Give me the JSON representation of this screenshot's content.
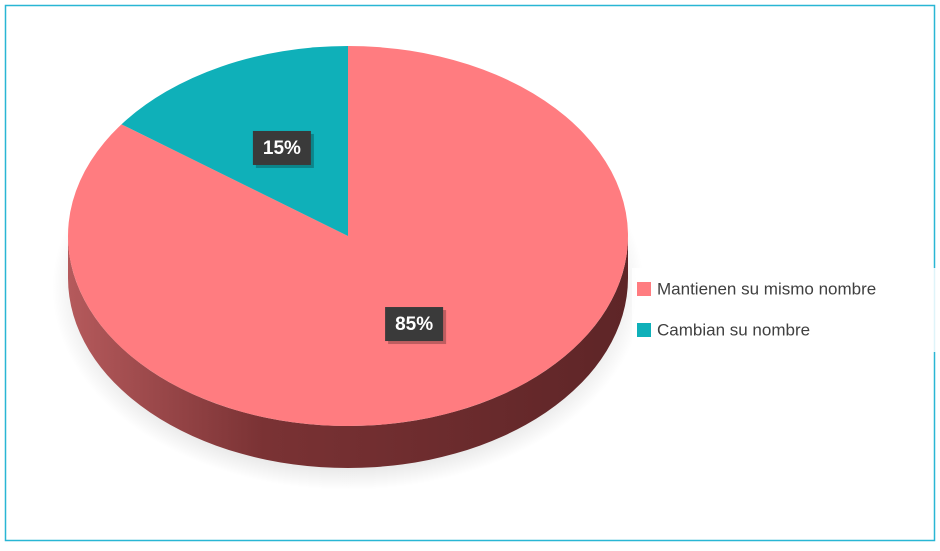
{
  "chart_data": {
    "type": "pie",
    "categories": [
      "Mantienen su mismo nombre",
      "Cambian su nombre"
    ],
    "values": [
      85,
      15
    ],
    "value_labels": [
      "85%",
      "15%"
    ],
    "colors": [
      "#ff7c80",
      "#0fb0b9"
    ],
    "legend": "right"
  }
}
